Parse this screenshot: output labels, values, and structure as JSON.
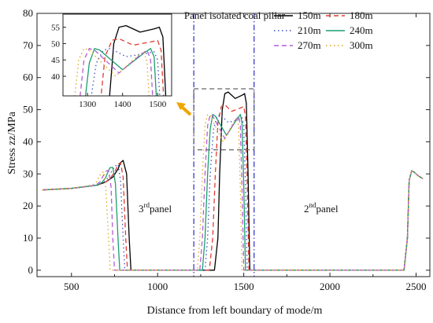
{
  "chart_data": {
    "type": "line",
    "xlabel": "Distance from left boundary of mode/m",
    "ylabel": "Stress zz/MPa",
    "xlim": [
      300,
      2580
    ],
    "ylim": [
      -2,
      80
    ],
    "x_ticks": [
      "500",
      "1000",
      "1500",
      "2000",
      "2500"
    ],
    "y_ticks": [
      "0",
      "10",
      "20",
      "30",
      "40",
      "50",
      "60",
      "70",
      "80"
    ],
    "legend_position": "top-right",
    "series": [
      {
        "name": "150m",
        "color": "#000000",
        "dash": "solid",
        "x": [
          330,
          500,
          650,
          700,
          740,
          770,
          785,
          800,
          820,
          835,
          845,
          1300,
          1330,
          1350,
          1360,
          1375,
          1390,
          1410,
          1450,
          1490,
          1505,
          1515,
          1525,
          1535,
          2400,
          2430,
          2450,
          2460,
          2475,
          2490,
          2510,
          2540
        ],
        "y": [
          25,
          25.5,
          26.5,
          27.5,
          29,
          31.5,
          33.5,
          34.2,
          30,
          10,
          0,
          0,
          0,
          10,
          30,
          50,
          55,
          55.5,
          53.5,
          54.5,
          55,
          52,
          30,
          0,
          0,
          0,
          10,
          28,
          31,
          30.5,
          29.5,
          28.5
        ]
      },
      {
        "name": "180m",
        "color": "#e03c31",
        "dash": "6,4",
        "x": [
          330,
          500,
          650,
          700,
          730,
          755,
          770,
          785,
          800,
          815,
          825,
          1280,
          1300,
          1320,
          1335,
          1350,
          1370,
          1390,
          1430,
          1480,
          1500,
          1510,
          1520,
          1530,
          2400,
          2430,
          2450,
          2460,
          2475,
          2490,
          2510,
          2540
        ],
        "y": [
          25,
          25.5,
          26.5,
          27.5,
          29,
          31,
          33,
          33.5,
          29,
          10,
          0,
          0,
          0,
          10,
          30,
          46,
          51,
          51.5,
          49.5,
          50.5,
          51,
          48,
          28,
          0,
          0,
          0,
          10,
          28,
          31,
          30.5,
          29.5,
          28.5
        ]
      },
      {
        "name": "210m",
        "color": "#3c4fc0",
        "dash": "1.5,3.5",
        "x": [
          330,
          500,
          650,
          690,
          715,
          735,
          755,
          770,
          785,
          800,
          810,
          1260,
          1275,
          1290,
          1305,
          1325,
          1345,
          1365,
          1410,
          1470,
          1490,
          1500,
          1510,
          1520,
          2400,
          2430,
          2450,
          2460,
          2475,
          2490,
          2510,
          2540
        ],
        "y": [
          25,
          25.5,
          26.5,
          27.5,
          29,
          31,
          32.5,
          33,
          28,
          10,
          0,
          0,
          0,
          10,
          30,
          44,
          48,
          48.5,
          46,
          47,
          47.5,
          45,
          27,
          0,
          0,
          0,
          10,
          28,
          31,
          30.5,
          29.5,
          28.5
        ]
      },
      {
        "name": "240m",
        "color": "#1a9e6e",
        "dash": "solid",
        "x": [
          330,
          500,
          650,
          680,
          700,
          715,
          725,
          740,
          755,
          770,
          780,
          1245,
          1260,
          1275,
          1290,
          1305,
          1320,
          1335,
          1400,
          1460,
          1480,
          1490,
          1500,
          1510,
          2400,
          2430,
          2450,
          2460,
          2475,
          2490,
          2510,
          2540
        ],
        "y": [
          25,
          25.5,
          26.5,
          27.5,
          29,
          31,
          32,
          32,
          27,
          10,
          0,
          0,
          0,
          10,
          30,
          44,
          48.5,
          48,
          42,
          47,
          48.5,
          46,
          27,
          0,
          0,
          0,
          10,
          28,
          31,
          30.5,
          29.5,
          28.5
        ]
      },
      {
        "name": "270m",
        "color": "#b65ad8",
        "dash": "6,4",
        "x": [
          330,
          500,
          640,
          665,
          680,
          695,
          705,
          715,
          730,
          740,
          750,
          1230,
          1245,
          1260,
          1275,
          1290,
          1305,
          1320,
          1390,
          1450,
          1470,
          1480,
          1490,
          1500,
          2400,
          2430,
          2450,
          2460,
          2475,
          2490,
          2510,
          2540
        ],
        "y": [
          25,
          25.5,
          26.5,
          27.5,
          29,
          30.5,
          31,
          31,
          26,
          10,
          0,
          0,
          0,
          10,
          30,
          45,
          48.5,
          48,
          41,
          46.5,
          48,
          45,
          26,
          0,
          0,
          0,
          10,
          28,
          31,
          30.5,
          29.5,
          28.5
        ]
      },
      {
        "name": "300m",
        "color": "#e0a81a",
        "dash": "1.5,3.5",
        "x": [
          330,
          500,
          620,
          645,
          660,
          670,
          680,
          690,
          700,
          715,
          725,
          1215,
          1230,
          1245,
          1260,
          1275,
          1290,
          1305,
          1380,
          1440,
          1460,
          1470,
          1480,
          1490,
          2400,
          2430,
          2450,
          2460,
          2475,
          2490,
          2510,
          2540
        ],
        "y": [
          25,
          25.5,
          26.5,
          27.5,
          29,
          30,
          30.5,
          30.5,
          25,
          10,
          0,
          0,
          0,
          10,
          30,
          45,
          48.5,
          48,
          40,
          46,
          47.5,
          44.5,
          25,
          0,
          0,
          0,
          10,
          28,
          31,
          30.5,
          29.5,
          28.5
        ]
      }
    ],
    "vertical_lines": [
      1210,
      1560
    ],
    "annotations": {
      "pillar": "Panel isolated coal pillar",
      "panel3_main": "3",
      "panel3_sup": "rd",
      "panel3_tail": "panel",
      "panel2_main": "2",
      "panel2_sup": "nd",
      "panel2_tail": "panel"
    },
    "zoom_box": {
      "x": [
        1210,
        1560
      ],
      "y": [
        37.5,
        56.5
      ]
    },
    "inset": {
      "xlim": [
        1230,
        1540
      ],
      "ylim": [
        34,
        59
      ],
      "x_ticks": [
        "1300",
        "1400",
        "1500"
      ],
      "y_ticks": [
        "40",
        "45",
        "50",
        "55"
      ]
    },
    "arrow_color": "#f0a500"
  }
}
